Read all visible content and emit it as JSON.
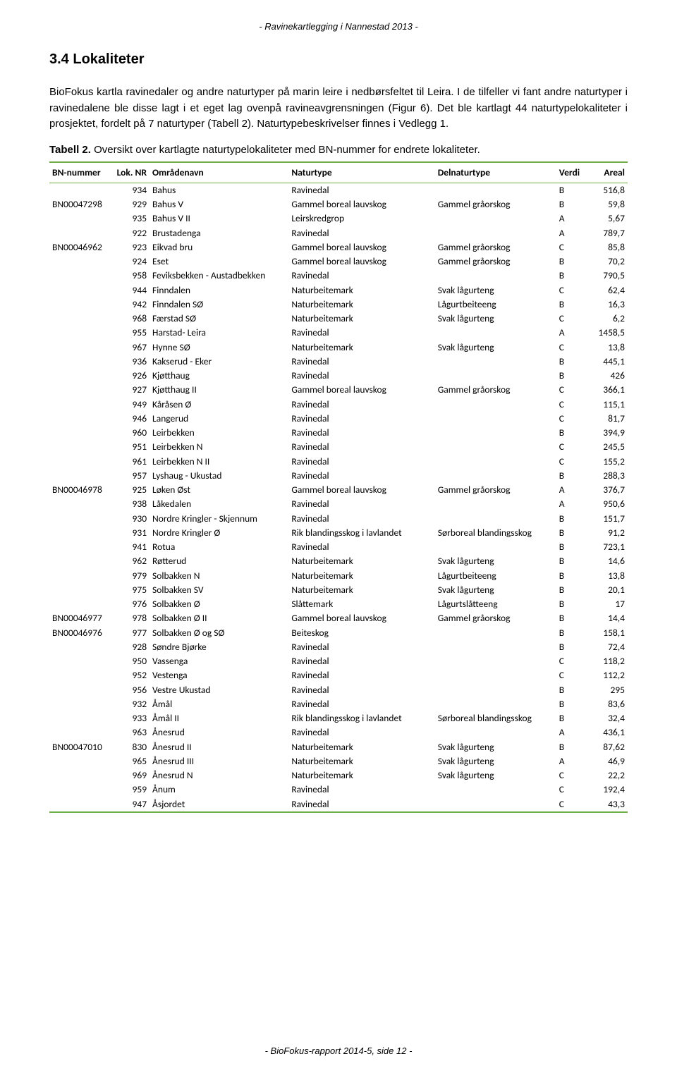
{
  "header": "- Ravinekartlegging i Nannestad 2013 -",
  "footer": "- BioFokus-rapport 2014-5, side 12 -",
  "section_title": "3.4  Lokaliteter",
  "paragraph": "BioFokus kartla ravinedaler og andre naturtyper på marin leire i nedbørsfeltet til Leira. I de tilfeller vi fant andre naturtyper i ravinedalene ble disse lagt i et eget lag ovenpå ravineavgrensningen (Figur 6). Det ble kartlagt 44 naturtypelokaliteter i prosjektet, fordelt på 7 naturtyper (Tabell 2). Naturtypebeskrivelser finnes i Vedlegg 1.",
  "caption_bold": "Tabell 2.",
  "caption_rest": " Oversikt over kartlagte naturtypelokaliteter med BN-nummer for endrete lokaliteter.",
  "table": {
    "border_color": "#70ad47",
    "headers": {
      "bn": "BN-nummer",
      "lok": "Lok. NR",
      "omr": "Områdenavn",
      "nat": "Naturtype",
      "del": "Delnaturtype",
      "ver": "Verdi",
      "are": "Areal"
    },
    "rows": [
      {
        "bn": "",
        "lok": "934",
        "omr": "Bahus",
        "nat": "Ravinedal",
        "del": "",
        "ver": "B",
        "are": "516,8"
      },
      {
        "bn": "BN00047298",
        "lok": "929",
        "omr": "Bahus V",
        "nat": "Gammel boreal lauvskog",
        "del": "Gammel gråorskog",
        "ver": "B",
        "are": "59,8"
      },
      {
        "bn": "",
        "lok": "935",
        "omr": "Bahus V II",
        "nat": "Leirskredgrop",
        "del": "",
        "ver": "A",
        "are": "5,67"
      },
      {
        "bn": "",
        "lok": "922",
        "omr": "Brustadenga",
        "nat": "Ravinedal",
        "del": "",
        "ver": "A",
        "are": "789,7"
      },
      {
        "bn": "BN00046962",
        "lok": "923",
        "omr": "Eikvad bru",
        "nat": "Gammel boreal lauvskog",
        "del": "Gammel gråorskog",
        "ver": "C",
        "are": "85,8"
      },
      {
        "bn": "",
        "lok": "924",
        "omr": "Eset",
        "nat": "Gammel boreal lauvskog",
        "del": "Gammel gråorskog",
        "ver": "B",
        "are": "70,2"
      },
      {
        "bn": "",
        "lok": "958",
        "omr": "Feviksbekken - Austadbekken",
        "nat": "Ravinedal",
        "del": "",
        "ver": "B",
        "are": "790,5"
      },
      {
        "bn": "",
        "lok": "944",
        "omr": "Finndalen",
        "nat": "Naturbeitemark",
        "del": "Svak lågurteng",
        "ver": "C",
        "are": "62,4"
      },
      {
        "bn": "",
        "lok": "942",
        "omr": "Finndalen SØ",
        "nat": "Naturbeitemark",
        "del": "Lågurtbeiteeng",
        "ver": "B",
        "are": "16,3"
      },
      {
        "bn": "",
        "lok": "968",
        "omr": "Færstad SØ",
        "nat": "Naturbeitemark",
        "del": "Svak lågurteng",
        "ver": "C",
        "are": "6,2"
      },
      {
        "bn": "",
        "lok": "955",
        "omr": "Harstad- Leira",
        "nat": "Ravinedal",
        "del": "",
        "ver": "A",
        "are": "1458,5"
      },
      {
        "bn": "",
        "lok": "967",
        "omr": "Hynne SØ",
        "nat": "Naturbeitemark",
        "del": "Svak lågurteng",
        "ver": "C",
        "are": "13,8"
      },
      {
        "bn": "",
        "lok": "936",
        "omr": "Kakserud - Eker",
        "nat": "Ravinedal",
        "del": "",
        "ver": "B",
        "are": "445,1"
      },
      {
        "bn": "",
        "lok": "926",
        "omr": "Kjøtthaug",
        "nat": "Ravinedal",
        "del": "",
        "ver": "B",
        "are": "426"
      },
      {
        "bn": "",
        "lok": "927",
        "omr": "Kjøtthaug II",
        "nat": "Gammel boreal lauvskog",
        "del": "Gammel gråorskog",
        "ver": "C",
        "are": "366,1"
      },
      {
        "bn": "",
        "lok": "949",
        "omr": "Kåråsen Ø",
        "nat": "Ravinedal",
        "del": "",
        "ver": "C",
        "are": "115,1"
      },
      {
        "bn": "",
        "lok": "946",
        "omr": "Langerud",
        "nat": "Ravinedal",
        "del": "",
        "ver": "C",
        "are": "81,7"
      },
      {
        "bn": "",
        "lok": "960",
        "omr": "Leirbekken",
        "nat": "Ravinedal",
        "del": "",
        "ver": "B",
        "are": "394,9"
      },
      {
        "bn": "",
        "lok": "951",
        "omr": "Leirbekken N",
        "nat": "Ravinedal",
        "del": "",
        "ver": "C",
        "are": "245,5"
      },
      {
        "bn": "",
        "lok": "961",
        "omr": "Leirbekken N II",
        "nat": "Ravinedal",
        "del": "",
        "ver": "C",
        "are": "155,2"
      },
      {
        "bn": "",
        "lok": "957",
        "omr": "Lyshaug - Ukustad",
        "nat": "Ravinedal",
        "del": "",
        "ver": "B",
        "are": "288,3"
      },
      {
        "bn": "BN00046978",
        "lok": "925",
        "omr": "Løken Øst",
        "nat": "Gammel boreal lauvskog",
        "del": "Gammel gråorskog",
        "ver": "A",
        "are": "376,7"
      },
      {
        "bn": "",
        "lok": "938",
        "omr": "Låkedalen",
        "nat": "Ravinedal",
        "del": "",
        "ver": "A",
        "are": "950,6"
      },
      {
        "bn": "",
        "lok": "930",
        "omr": "Nordre Kringler - Skjennum",
        "nat": "Ravinedal",
        "del": "",
        "ver": "B",
        "are": "151,7"
      },
      {
        "bn": "",
        "lok": "931",
        "omr": "Nordre Kringler Ø",
        "nat": "Rik blandingsskog i lavlandet",
        "del": "Sørboreal blandingsskog",
        "ver": "B",
        "are": "91,2"
      },
      {
        "bn": "",
        "lok": "941",
        "omr": "Rotua",
        "nat": "Ravinedal",
        "del": "",
        "ver": "B",
        "are": "723,1"
      },
      {
        "bn": "",
        "lok": "962",
        "omr": "Røtterud",
        "nat": "Naturbeitemark",
        "del": "Svak lågurteng",
        "ver": "B",
        "are": "14,6"
      },
      {
        "bn": "",
        "lok": "979",
        "omr": "Solbakken N",
        "nat": "Naturbeitemark",
        "del": "Lågurtbeiteeng",
        "ver": "B",
        "are": "13,8"
      },
      {
        "bn": "",
        "lok": "975",
        "omr": "Solbakken SV",
        "nat": "Naturbeitemark",
        "del": "Svak lågurteng",
        "ver": "B",
        "are": "20,1"
      },
      {
        "bn": "",
        "lok": "976",
        "omr": "Solbakken Ø",
        "nat": "Slåttemark",
        "del": "Lågurtslåtteeng",
        "ver": "B",
        "are": "17"
      },
      {
        "bn": "BN00046977",
        "lok": "978",
        "omr": "Solbakken Ø II",
        "nat": "Gammel boreal lauvskog",
        "del": "Gammel gråorskog",
        "ver": "B",
        "are": "14,4"
      },
      {
        "bn": "BN00046976",
        "lok": "977",
        "omr": "Solbakken Ø og SØ",
        "nat": "Beiteskog",
        "del": "",
        "ver": "B",
        "are": "158,1"
      },
      {
        "bn": "",
        "lok": "928",
        "omr": "Søndre Bjørke",
        "nat": "Ravinedal",
        "del": "",
        "ver": "B",
        "are": "72,4"
      },
      {
        "bn": "",
        "lok": "950",
        "omr": "Vassenga",
        "nat": "Ravinedal",
        "del": "",
        "ver": "C",
        "are": "118,2"
      },
      {
        "bn": "",
        "lok": "952",
        "omr": "Vestenga",
        "nat": "Ravinedal",
        "del": "",
        "ver": "C",
        "are": "112,2"
      },
      {
        "bn": "",
        "lok": "956",
        "omr": "Vestre Ukustad",
        "nat": "Ravinedal",
        "del": "",
        "ver": "B",
        "are": "295"
      },
      {
        "bn": "",
        "lok": "932",
        "omr": "Åmål",
        "nat": "Ravinedal",
        "del": "",
        "ver": "B",
        "are": "83,6"
      },
      {
        "bn": "",
        "lok": "933",
        "omr": "Åmål II",
        "nat": "Rik blandingsskog i lavlandet",
        "del": "Sørboreal blandingsskog",
        "ver": "B",
        "are": "32,4"
      },
      {
        "bn": "",
        "lok": "963",
        "omr": "Ånesrud",
        "nat": "Ravinedal",
        "del": "",
        "ver": "A",
        "are": "436,1"
      },
      {
        "bn": "BN00047010",
        "lok": "830",
        "omr": "Ånesrud II",
        "nat": "Naturbeitemark",
        "del": "Svak lågurteng",
        "ver": "B",
        "are": "87,62"
      },
      {
        "bn": "",
        "lok": "965",
        "omr": "Ånesrud III",
        "nat": "Naturbeitemark",
        "del": "Svak lågurteng",
        "ver": "A",
        "are": "46,9"
      },
      {
        "bn": "",
        "lok": "969",
        "omr": "Ånesrud N",
        "nat": "Naturbeitemark",
        "del": "Svak lågurteng",
        "ver": "C",
        "are": "22,2"
      },
      {
        "bn": "",
        "lok": "959",
        "omr": "Ånum",
        "nat": "Ravinedal",
        "del": "",
        "ver": "C",
        "are": "192,4"
      },
      {
        "bn": "",
        "lok": "947",
        "omr": "Åsjordet",
        "nat": "Ravinedal",
        "del": "",
        "ver": "C",
        "are": "43,3"
      }
    ]
  }
}
